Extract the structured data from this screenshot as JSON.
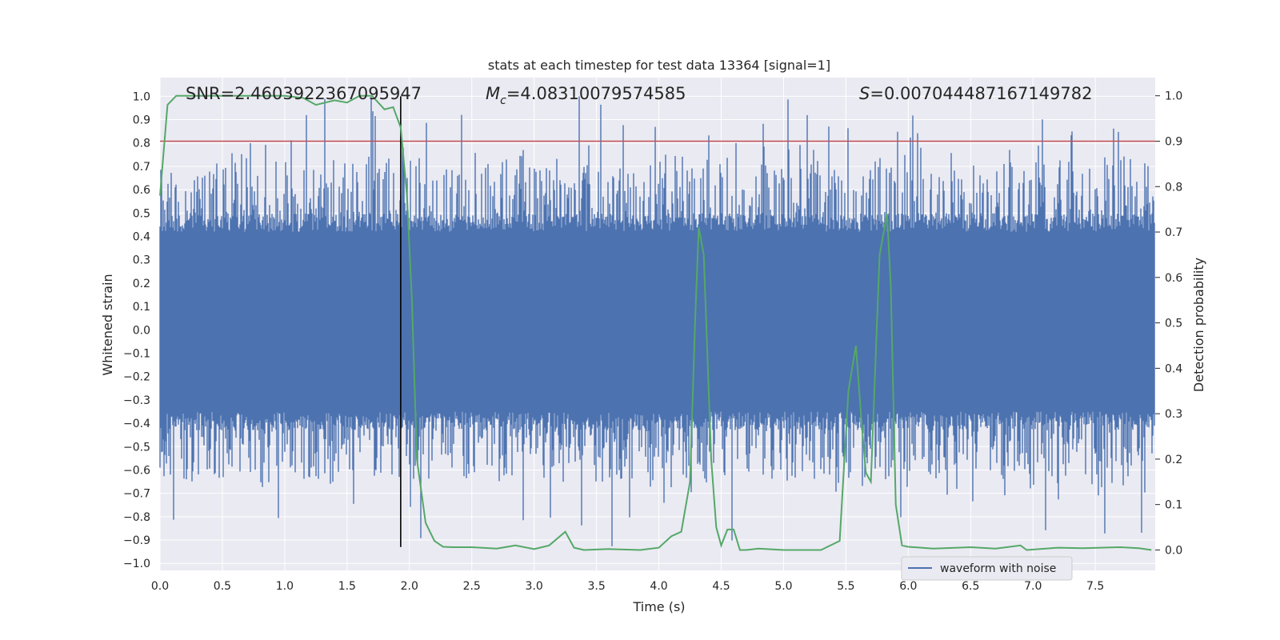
{
  "chart_data": {
    "type": "line",
    "title": "stats at each timestep for test data 13364 [signal=1]",
    "xlabel": "Time (s)",
    "ylabel_left": "Whitened strain",
    "ylabel_right": "Detection probability",
    "xlim": [
      0.0,
      7.98
    ],
    "ylim_left": [
      -1.03,
      1.08
    ],
    "ylim_right": [
      -0.045,
      1.04
    ],
    "x_ticks": [
      "0.0",
      "0.5",
      "1.0",
      "1.5",
      "2.0",
      "2.5",
      "3.0",
      "3.5",
      "4.0",
      "4.5",
      "5.0",
      "5.5",
      "6.0",
      "6.5",
      "7.0",
      "7.5"
    ],
    "y_ticks_left": [
      "1.0",
      "0.9",
      "0.8",
      "0.7",
      "0.6",
      "0.5",
      "0.4",
      "0.3",
      "0.2",
      "0.1",
      "0.0",
      "−0.1",
      "−0.2",
      "−0.3",
      "−0.4",
      "−0.5",
      "−0.6",
      "−0.7",
      "−0.8",
      "−0.9",
      "−1.0"
    ],
    "y_ticks_right": [
      "1.0",
      "0.9",
      "0.8",
      "0.7",
      "0.6",
      "0.5",
      "0.4",
      "0.3",
      "0.2",
      "0.1",
      "0.0"
    ],
    "annotations": {
      "snr": "SNR=2.4603922367095947",
      "mc_symbol": "M",
      "mc_sub": "c",
      "mc_value": "=4.08310079574585",
      "s_symbol": "S",
      "s_value": "=0.007044487167149782"
    },
    "threshold_right": 0.9,
    "marker_time": 1.93,
    "grid": true,
    "legend_position": "lower-right",
    "series": [
      {
        "name": "waveform with noise",
        "axis": "left",
        "kind": "noise-band",
        "band_min": -0.35,
        "band_max": 0.42,
        "peak_range": [
          -0.93,
          1.0
        ],
        "color": "#4c72b0"
      },
      {
        "axis": "right",
        "kind": "line",
        "color": "#55a868",
        "x": [
          0.0,
          0.06,
          0.13,
          0.5,
          1.0,
          1.15,
          1.25,
          1.4,
          1.5,
          1.6,
          1.7,
          1.8,
          1.87,
          1.93,
          1.98,
          2.02,
          2.06,
          2.13,
          2.2,
          2.27,
          2.35,
          2.5,
          2.7,
          2.85,
          3.0,
          3.12,
          3.25,
          3.32,
          3.4,
          3.6,
          3.85,
          4.0,
          4.1,
          4.18,
          4.25,
          4.29,
          4.32,
          4.36,
          4.42,
          4.46,
          4.5,
          4.55,
          4.6,
          4.65,
          4.7,
          4.8,
          5.0,
          5.3,
          5.45,
          5.52,
          5.58,
          5.62,
          5.66,
          5.7,
          5.77,
          5.83,
          5.86,
          5.9,
          5.95,
          6.0,
          6.2,
          6.5,
          6.7,
          6.9,
          6.95,
          7.2,
          7.4,
          7.7,
          7.85,
          7.95
        ],
        "y": [
          0.78,
          0.98,
          1.0,
          1.0,
          1.0,
          0.995,
          0.98,
          0.99,
          0.985,
          1.0,
          1.0,
          0.97,
          0.975,
          0.93,
          0.78,
          0.55,
          0.2,
          0.06,
          0.02,
          0.007,
          0.006,
          0.006,
          0.003,
          0.01,
          0.002,
          0.01,
          0.04,
          0.005,
          0.0,
          0.002,
          0.0,
          0.005,
          0.03,
          0.04,
          0.15,
          0.5,
          0.71,
          0.65,
          0.2,
          0.05,
          0.01,
          0.045,
          0.045,
          0.0,
          0.0,
          0.003,
          0.0,
          0.0,
          0.02,
          0.35,
          0.45,
          0.3,
          0.17,
          0.15,
          0.65,
          0.74,
          0.58,
          0.1,
          0.01,
          0.007,
          0.003,
          0.006,
          0.003,
          0.01,
          0.0,
          0.005,
          0.004,
          0.006,
          0.004,
          0.0
        ]
      }
    ]
  }
}
